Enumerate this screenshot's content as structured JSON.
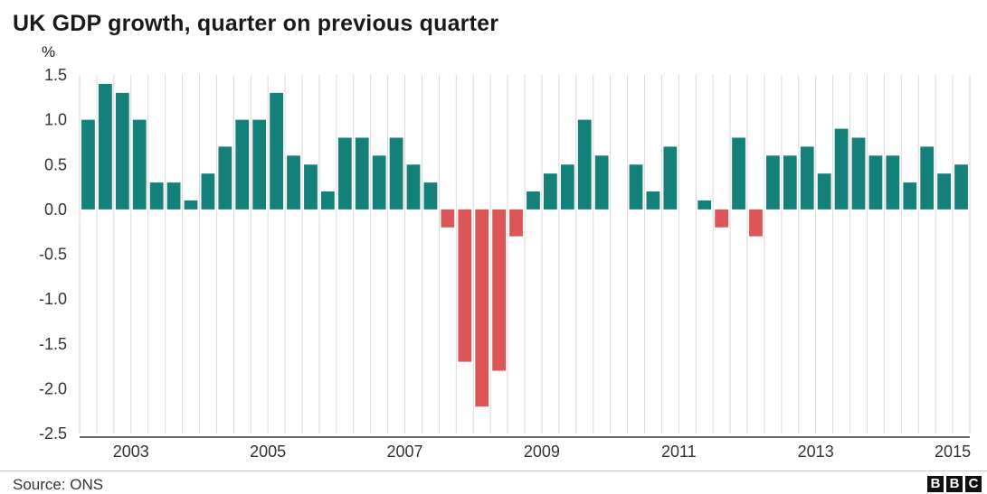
{
  "chart_data": {
    "type": "bar",
    "title": "UK GDP growth, quarter on previous quarter",
    "ylabel": "%",
    "xlabel": "",
    "ylim": [
      -2.5,
      1.5
    ],
    "yticks": [
      1.5,
      1.0,
      0.5,
      0.0,
      -0.5,
      -1.0,
      -1.5,
      -2.0,
      -2.5
    ],
    "ytick_labels": [
      "1.5",
      "1.0",
      "0.5",
      "0.0",
      "-0.5",
      "-1.0",
      "-1.5",
      "-2.0",
      "-2.5"
    ],
    "x_tick_labels": [
      "2003",
      "2005",
      "2007",
      "2009",
      "2011",
      "2013",
      "2015"
    ],
    "x_tick_first_quarter_index": [
      1,
      9,
      17,
      25,
      33,
      41,
      49
    ],
    "grid": "vertical",
    "values": [
      1.0,
      1.4,
      1.3,
      1.0,
      0.3,
      0.3,
      0.1,
      0.4,
      0.7,
      1.0,
      1.0,
      1.3,
      0.6,
      0.5,
      0.2,
      0.8,
      0.8,
      0.6,
      0.8,
      0.5,
      0.3,
      -0.2,
      -1.7,
      -2.2,
      -1.8,
      -0.3,
      0.2,
      0.4,
      0.5,
      1.0,
      0.6,
      0.0,
      0.5,
      0.2,
      0.7,
      0.0,
      0.1,
      -0.2,
      0.8,
      -0.3,
      0.6,
      0.6,
      0.7,
      0.4,
      0.9,
      0.8,
      0.6,
      0.6,
      0.3,
      0.7,
      0.4,
      0.5
    ],
    "colors": {
      "positive": "#13807a",
      "negative": "#dd5657",
      "grid": "#dadada",
      "axis": "#333333"
    }
  },
  "footer": {
    "source": "Source: ONS",
    "logo_letters": [
      "B",
      "B",
      "C"
    ]
  }
}
